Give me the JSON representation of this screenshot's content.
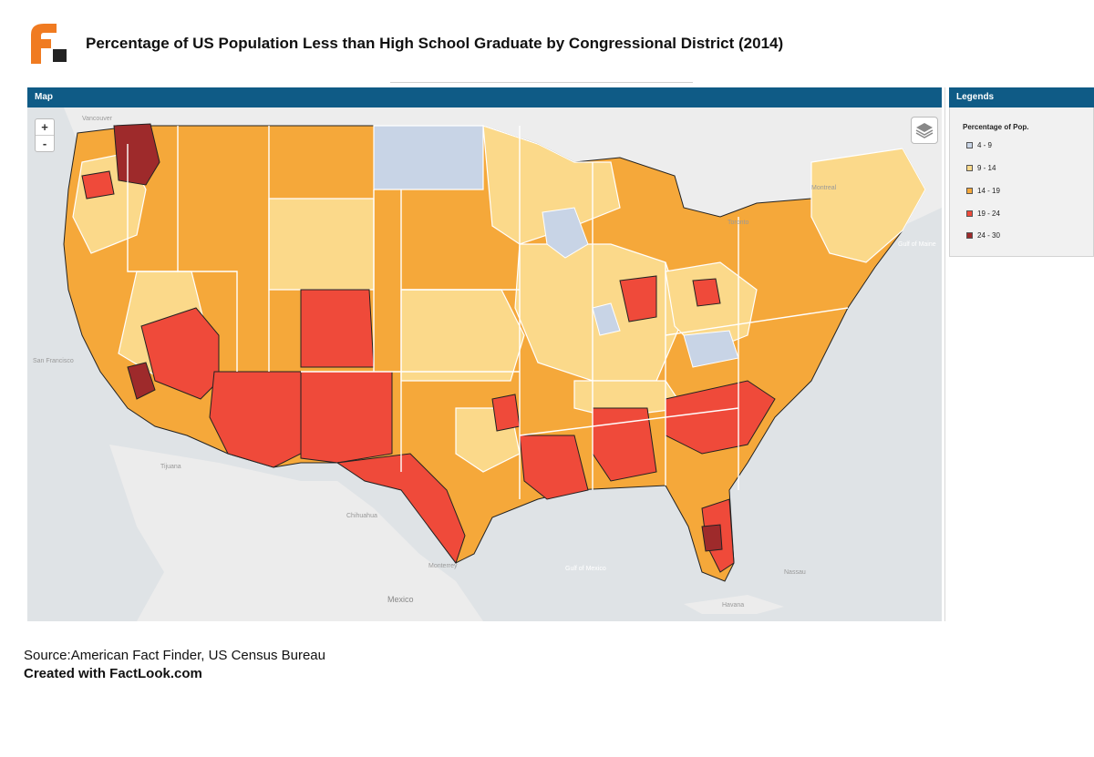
{
  "header": {
    "title": "Percentage of US Population Less than High School Graduate by Congressional District (2014)"
  },
  "map_panel": {
    "title": "Map",
    "zoom_in": "+",
    "zoom_out": "-"
  },
  "legend": {
    "panel_title": "Legends",
    "title": "Percentage of Pop.",
    "items": [
      {
        "label": "4 - 9",
        "color": "#c8d4e6"
      },
      {
        "label": "9 - 14",
        "color": "#fbd98a"
      },
      {
        "label": "14 - 19",
        "color": "#f5a83a"
      },
      {
        "label": "19 - 24",
        "color": "#ef4a3a"
      },
      {
        "label": "24 - 30",
        "color": "#9e2a2b"
      }
    ]
  },
  "basemap_labels": {
    "mexico": "Mexico",
    "gulf": "Gulf of Mexico",
    "montreal": "Montreal",
    "toronto": "Toronto",
    "san_francisco": "San Francisco",
    "tijuana": "Tijuana",
    "monterrey": "Monterrey",
    "chihuahua": "Chihuahua",
    "havana": "Havana",
    "nassau": "Nassau",
    "gulf_of_maine": "Gulf of Maine",
    "vancouver": "Vancouver"
  },
  "footer": {
    "source": "Source:American Fact Finder, US Census Bureau",
    "created": "Created with FactLook.com"
  }
}
